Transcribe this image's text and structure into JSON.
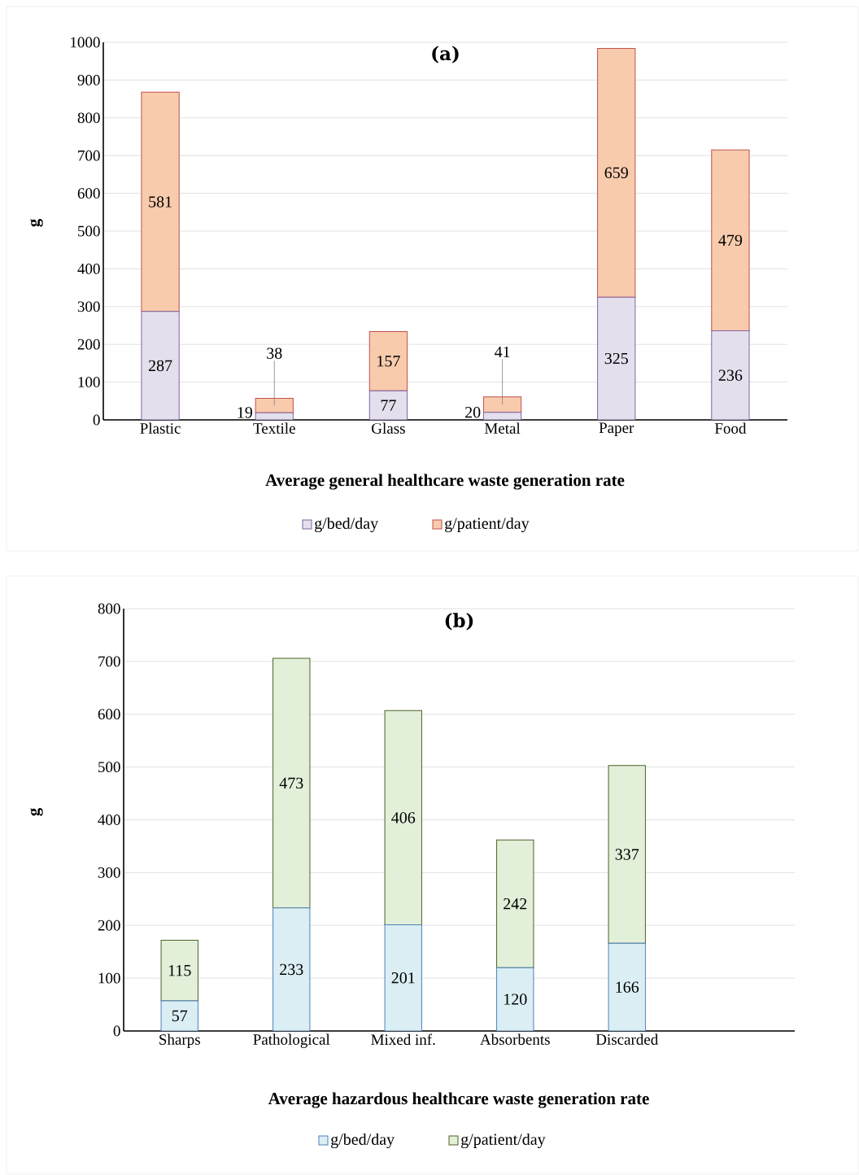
{
  "chart_data": [
    {
      "type": "bar",
      "title": "(a)",
      "xlabel": "Average general healthcare waste generation rate",
      "ylabel": "g",
      "stacked": true,
      "grid": "y",
      "legend": "bottom",
      "data_labels": true,
      "categories": [
        "Plastic",
        "Textile",
        "Glass",
        "Metal",
        "Paper",
        "Food"
      ],
      "ylim": [
        0,
        1000
      ],
      "yticks": [
        0,
        100,
        200,
        300,
        400,
        500,
        600,
        700,
        800,
        900,
        1000
      ],
      "series": [
        {
          "name": "g/bed/day",
          "color": "#e4dfec",
          "values": [
            287,
            19,
            77,
            20,
            325,
            236
          ]
        },
        {
          "name": "g/patient/day",
          "color": "#f8cbad",
          "values": [
            581,
            38,
            157,
            41,
            659,
            479
          ]
        }
      ]
    },
    {
      "type": "bar",
      "title": "(b)",
      "xlabel": "Average hazardous healthcare waste generation rate",
      "ylabel": "g",
      "stacked": true,
      "grid": "y",
      "legend": "bottom",
      "data_labels": true,
      "categories": [
        "Sharps",
        "Pathological",
        "Mixed inf.",
        "Absorbents",
        "Discarded"
      ],
      "ylim": [
        0,
        800
      ],
      "yticks": [
        0,
        100,
        200,
        300,
        400,
        500,
        600,
        700,
        800
      ],
      "series": [
        {
          "name": "g/bed/day",
          "color": "#daeef3",
          "values": [
            57,
            233,
            201,
            120,
            166
          ]
        },
        {
          "name": "g/patient/day",
          "color": "#e2efd9",
          "values": [
            115,
            473,
            406,
            242,
            337
          ]
        }
      ]
    }
  ]
}
